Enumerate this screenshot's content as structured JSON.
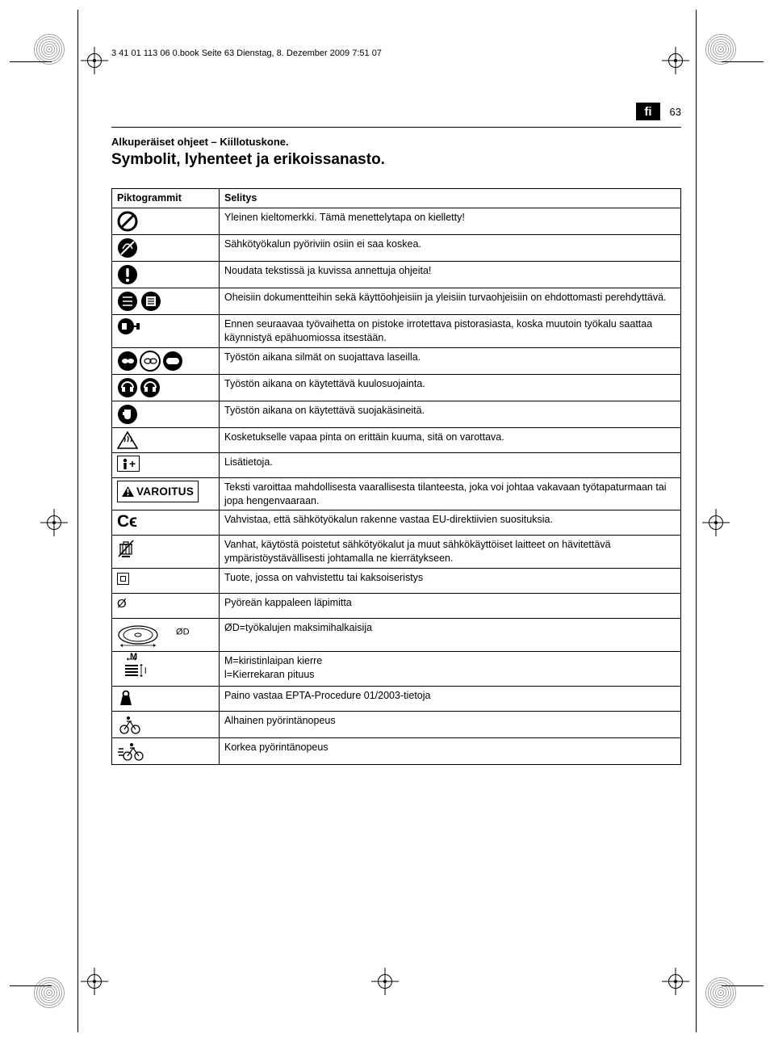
{
  "meta": {
    "book_header": "3 41 01 113 06 0.book  Seite 63  Dienstag, 8. Dezember 2009  7:51 07",
    "lang_code": "fi",
    "page_number": "63",
    "subtitle": "Alkuperäiset ohjeet – Kiillotuskone.",
    "title": "Symbolit, lyhenteet ja erikoissanasto."
  },
  "table": {
    "header_pictograms": "Piktogrammit",
    "header_explanation": "Selitys",
    "rows": [
      {
        "icon": "prohibit",
        "text": "Yleinen kieltomerkki. Tämä menettelytapa on kielletty!"
      },
      {
        "icon": "no-touch",
        "text": "Sähkötyökalun pyöriviin osiin ei saa koskea."
      },
      {
        "icon": "info-bang",
        "text": "Noudata tekstissä ja kuvissa annettuja ohjeita!"
      },
      {
        "icon": "docs",
        "text": "Oheisiin dokumentteihin sekä käyttöohjeisiin ja yleisiin turvaohjeisiin on ehdottomasti perehdyttävä."
      },
      {
        "icon": "unplug",
        "text": "Ennen seuraavaa työvaihetta on pistoke irrotettava pistorasiasta, koska muutoin työkalu saattaa käynnistyä epähuomiossa itsestään."
      },
      {
        "icon": "goggles",
        "text": "Työstön aikana silmät on suojattava laseilla."
      },
      {
        "icon": "ear",
        "text": "Työstön aikana on käytettävä kuulosuojainta."
      },
      {
        "icon": "gloves",
        "text": "Työstön aikana on käytettävä suojakäsineitä."
      },
      {
        "icon": "hot",
        "text": "Kosketukselle vapaa pinta on erittäin kuuma, sitä on varottava."
      },
      {
        "icon": "iplus",
        "text": "Lisätietoja."
      },
      {
        "icon": "warning-badge",
        "warning_label": "VAROITUS",
        "text": "Teksti varoittaa mahdollisesta vaarallisesta tilanteesta, joka voi johtaa vakavaan työtapaturmaan tai jopa hengenvaaraan."
      },
      {
        "icon": "ce",
        "text": "Vahvistaa, että sähkötyökalun rakenne vastaa EU-direktiivien suosituksia."
      },
      {
        "icon": "weee",
        "text": "Vanhat, käytöstä poistetut sähkötyökalut ja muut sähkökäyttöiset laitteet on hävitettävä ympäristöystävällisesti johtamalla ne kierrätykseen."
      },
      {
        "icon": "double-insulation",
        "text": "Tuote, jossa on vahvistettu tai kaksoiseristys"
      },
      {
        "icon": "diameter",
        "diameter_sym": "Ø",
        "text": "Pyöreän kappaleen läpimitta"
      },
      {
        "icon": "disc",
        "disc_label": "ØD",
        "text": "ØD=työkalujen maksimihalkaisija"
      },
      {
        "icon": "thread",
        "m_label": "M",
        "l_label": "l",
        "text": "M=kiristinlaipan kierre\nl=Kierrekaran pituus"
      },
      {
        "icon": "weight",
        "text": "Paino vastaa EPTA-Procedure 01/2003-tietoja"
      },
      {
        "icon": "slow-bike",
        "text": "Alhainen pyörintänopeus"
      },
      {
        "icon": "fast-bike",
        "text": "Korkea pyörintänopeus"
      }
    ]
  },
  "colors": {
    "text": "#000000",
    "background": "#ffffff",
    "border": "#000000",
    "badge_bg": "#000000",
    "badge_fg": "#ffffff"
  }
}
